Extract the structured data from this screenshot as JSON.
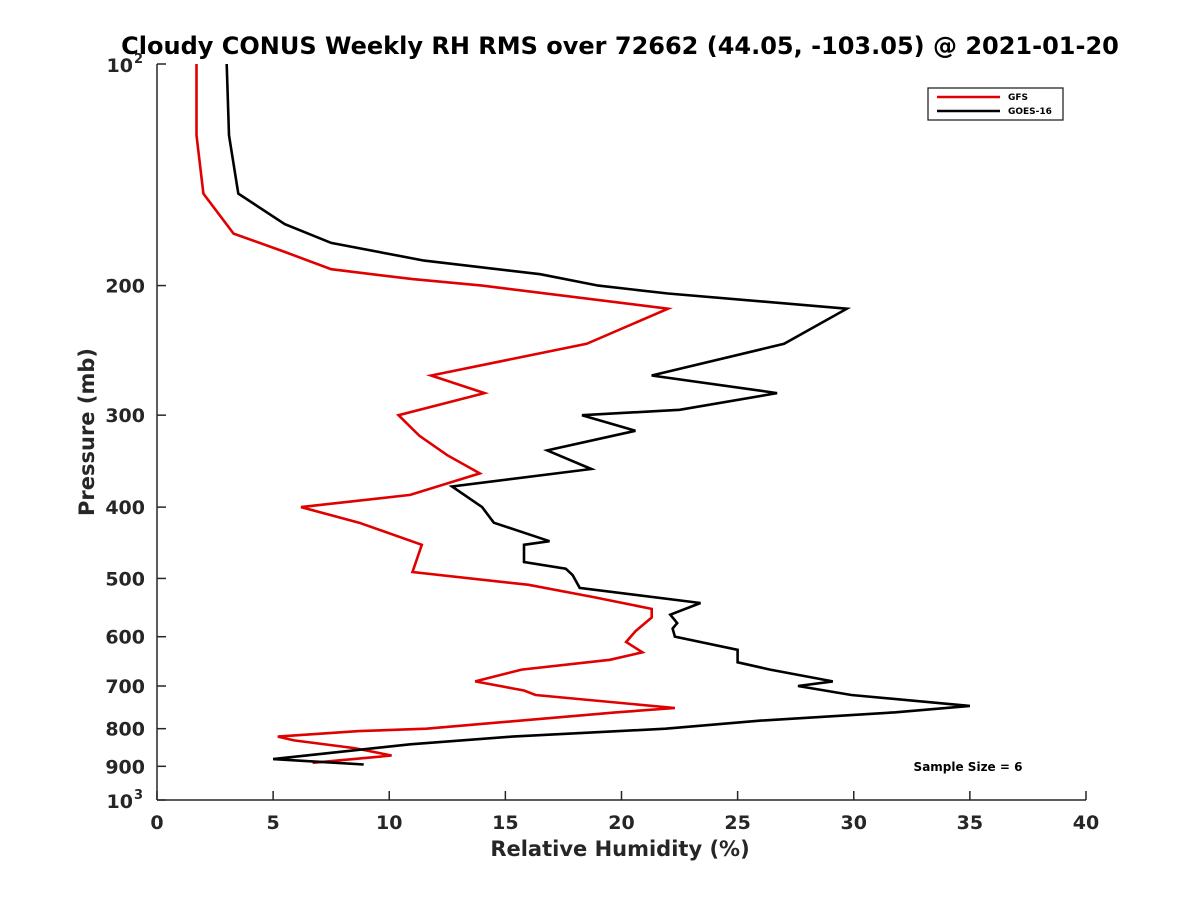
{
  "chart_data": {
    "type": "line",
    "title": "Cloudy CONUS Weekly RH RMS over 72662 (44.05, -103.05) @ 2021-01-20",
    "xlabel": "Relative Humidity (%)",
    "ylabel": "Pressure (mb)",
    "xlim": [
      0,
      40
    ],
    "ylim": [
      100,
      1000
    ],
    "y_scale": "log",
    "y_reversed": true,
    "grid": false,
    "legend_position": "top-right",
    "x_ticks": [
      "0",
      "5",
      "10",
      "15",
      "20",
      "25",
      "30",
      "35",
      "40"
    ],
    "y_ticks": [
      {
        "value": 100,
        "base": "10",
        "exp": "2"
      },
      {
        "value": 200,
        "label": "200"
      },
      {
        "value": 300,
        "label": "300"
      },
      {
        "value": 400,
        "label": "400"
      },
      {
        "value": 500,
        "label": "500"
      },
      {
        "value": 600,
        "label": "600"
      },
      {
        "value": 700,
        "label": "700"
      },
      {
        "value": 800,
        "label": "800"
      },
      {
        "value": 900,
        "label": "900"
      },
      {
        "value": 1000,
        "base": "10",
        "exp": "3"
      }
    ],
    "series": [
      {
        "name": "GFS",
        "color": "#e00000",
        "points": [
          [
            1.7,
            100
          ],
          [
            1.7,
            125
          ],
          [
            2.0,
            150
          ],
          [
            3.3,
            170
          ],
          [
            5.5,
            180
          ],
          [
            7.5,
            190
          ],
          [
            11.0,
            196
          ],
          [
            14.0,
            200
          ],
          [
            22.0,
            215
          ],
          [
            18.5,
            240
          ],
          [
            11.8,
            265
          ],
          [
            14.1,
            280
          ],
          [
            10.4,
            300
          ],
          [
            11.3,
            320
          ],
          [
            12.5,
            340
          ],
          [
            13.9,
            360
          ],
          [
            10.9,
            385
          ],
          [
            6.2,
            400
          ],
          [
            8.7,
            420
          ],
          [
            11.4,
            450
          ],
          [
            11.0,
            490
          ],
          [
            16.0,
            510
          ],
          [
            18.8,
            530
          ],
          [
            21.3,
            550
          ],
          [
            21.3,
            565
          ],
          [
            20.6,
            590
          ],
          [
            20.2,
            610
          ],
          [
            20.9,
            630
          ],
          [
            19.5,
            645
          ],
          [
            15.7,
            665
          ],
          [
            13.7,
            690
          ],
          [
            15.8,
            710
          ],
          [
            16.3,
            720
          ],
          [
            22.3,
            750
          ],
          [
            19.8,
            760
          ],
          [
            11.6,
            800
          ],
          [
            8.7,
            806
          ],
          [
            5.2,
            820
          ],
          [
            5.9,
            830
          ],
          [
            8.5,
            850
          ],
          [
            10.1,
            870
          ],
          [
            6.7,
            890
          ]
        ]
      },
      {
        "name": "GOES-16",
        "color": "#000000",
        "points": [
          [
            3.0,
            100
          ],
          [
            3.1,
            125
          ],
          [
            3.5,
            150
          ],
          [
            5.5,
            165
          ],
          [
            7.5,
            175
          ],
          [
            11.5,
            185
          ],
          [
            16.5,
            193
          ],
          [
            19.0,
            200
          ],
          [
            22.0,
            205
          ],
          [
            29.7,
            215
          ],
          [
            27.0,
            240
          ],
          [
            21.3,
            265
          ],
          [
            26.7,
            280
          ],
          [
            22.5,
            295
          ],
          [
            18.3,
            300
          ],
          [
            20.6,
            315
          ],
          [
            16.8,
            335
          ],
          [
            18.7,
            355
          ],
          [
            12.7,
            375
          ],
          [
            14.0,
            400
          ],
          [
            14.5,
            420
          ],
          [
            16.9,
            445
          ],
          [
            15.8,
            450
          ],
          [
            15.8,
            475
          ],
          [
            17.6,
            485
          ],
          [
            17.9,
            495
          ],
          [
            18.2,
            515
          ],
          [
            23.4,
            540
          ],
          [
            22.1,
            560
          ],
          [
            22.4,
            575
          ],
          [
            22.2,
            585
          ],
          [
            22.3,
            600
          ],
          [
            25.0,
            625
          ],
          [
            25.0,
            650
          ],
          [
            26.4,
            665
          ],
          [
            29.1,
            690
          ],
          [
            27.6,
            700
          ],
          [
            29.9,
            720
          ],
          [
            35.0,
            745
          ],
          [
            31.8,
            760
          ],
          [
            26.0,
            780
          ],
          [
            21.9,
            800
          ],
          [
            15.3,
            820
          ],
          [
            10.9,
            840
          ],
          [
            7.9,
            860
          ],
          [
            5.0,
            880
          ],
          [
            8.9,
            895
          ]
        ]
      }
    ],
    "annotation": "Sample Size = 6"
  }
}
